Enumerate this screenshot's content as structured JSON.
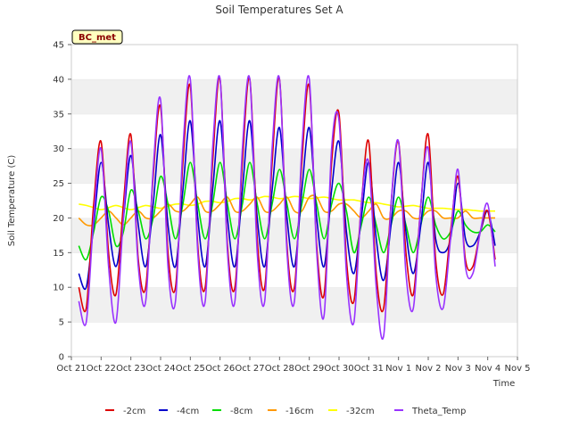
{
  "chart_data": {
    "type": "line",
    "title": "Soil Temperatures Set A",
    "xlabel": "Time",
    "ylabel": "Soil Temperature (C)",
    "badge": "BC_met",
    "ylim": [
      0,
      45
    ],
    "yticks": [
      0,
      5,
      10,
      15,
      20,
      25,
      30,
      35,
      40,
      45
    ],
    "xlim": [
      0,
      15
    ],
    "xticks": [
      "Oct 21",
      "Oct 22",
      "Oct 23",
      "Oct 24",
      "Oct 25",
      "Oct 26",
      "Oct 27",
      "Oct 28",
      "Oct 29",
      "Oct 30",
      "Oct 31",
      "Nov 1",
      "Nov 2",
      "Nov 3",
      "Nov 4",
      "Nov 5"
    ],
    "grid": "horizontal alternating bands",
    "legend_position": "bottom",
    "data_range_days": [
      0.25,
      14.25
    ],
    "sample_interval_days": 0.25,
    "series": [
      {
        "name": "-2cm",
        "color": "#dd0000",
        "values": [
          10,
          7,
          22,
          31,
          15,
          9,
          22,
          32,
          14,
          10,
          26,
          36,
          15,
          10,
          28,
          39,
          16,
          10,
          28,
          40,
          16,
          10,
          28,
          40,
          17,
          10,
          28,
          40,
          16,
          10,
          28,
          39,
          16,
          9,
          28,
          35,
          14,
          8,
          22,
          31,
          12,
          7,
          22,
          31,
          15,
          9,
          22,
          32,
          14,
          9,
          18,
          26,
          14,
          13,
          18,
          21,
          14
        ]
      },
      {
        "name": "-4cm",
        "color": "#0000cc",
        "values": [
          12,
          10,
          19,
          28,
          19,
          13,
          20,
          29,
          19,
          13,
          22,
          32,
          19,
          13,
          24,
          34,
          20,
          13,
          24,
          34,
          20,
          13,
          24,
          34,
          20,
          13,
          24,
          33,
          20,
          13,
          24,
          33,
          20,
          13,
          24,
          31,
          18,
          12,
          20,
          28,
          17,
          11,
          19,
          28,
          18,
          12,
          19,
          28,
          17,
          15,
          17,
          25,
          17,
          16,
          18,
          21,
          16
        ]
      },
      {
        "name": "-8cm",
        "color": "#00dd00",
        "values": [
          16,
          14,
          18,
          23,
          21,
          16,
          18,
          24,
          21,
          17,
          20,
          26,
          22,
          17,
          22,
          28,
          22,
          17,
          22,
          28,
          22,
          17,
          22,
          28,
          22,
          17,
          22,
          27,
          22,
          17,
          22,
          27,
          22,
          17,
          22,
          25,
          21,
          15,
          19,
          23,
          19,
          15,
          19,
          23,
          19,
          15,
          19,
          23,
          19,
          17,
          18,
          21,
          19,
          18,
          18,
          19,
          18
        ]
      },
      {
        "name": "-16cm",
        "color": "#ff9900",
        "values": [
          20,
          19,
          19,
          20,
          21,
          20,
          19,
          20,
          21,
          20,
          20,
          21,
          22,
          21,
          21,
          22,
          23,
          21,
          21,
          22,
          23,
          21,
          21,
          22,
          23,
          21,
          21,
          22,
          23,
          21,
          21,
          23,
          23,
          21,
          21,
          22,
          22,
          21,
          20,
          21,
          22,
          20,
          20,
          21,
          21,
          20,
          20,
          21,
          21,
          20,
          20,
          20,
          21,
          20,
          20,
          20,
          20
        ]
      },
      {
        "name": "-32cm",
        "color": "#ffff00",
        "values": [
          22,
          21.8,
          21.5,
          21.2,
          21.5,
          21.8,
          21.5,
          21.2,
          21.5,
          21.8,
          21.6,
          21.4,
          21.7,
          22,
          22,
          21.8,
          22,
          22.4,
          22.4,
          22.2,
          22.4,
          22.8,
          22.8,
          22.6,
          22.8,
          23.1,
          23,
          22.8,
          22.9,
          23.1,
          23,
          22.8,
          22.9,
          23,
          22.8,
          22.6,
          22.6,
          22.6,
          22.4,
          22.2,
          22.2,
          22,
          21.8,
          21.6,
          21.7,
          21.8,
          21.6,
          21.4,
          21.4,
          21.4,
          21.3,
          21.2,
          21.2,
          21.1,
          21,
          21,
          21
        ]
      },
      {
        "name": "Theta_Temp",
        "color": "#9933ff",
        "values": [
          8,
          5,
          20,
          30,
          13,
          5,
          20,
          31,
          13,
          8,
          27,
          37,
          13,
          8,
          30,
          40,
          15,
          8,
          30,
          40,
          15,
          8,
          30,
          40,
          15,
          8,
          30,
          40,
          15,
          8,
          30,
          40,
          15,
          6,
          30,
          34,
          12,
          5,
          22,
          28,
          10,
          3,
          22,
          31,
          12,
          7,
          22,
          30,
          12,
          7,
          17,
          27,
          13,
          12,
          18,
          22,
          13
        ]
      }
    ]
  }
}
